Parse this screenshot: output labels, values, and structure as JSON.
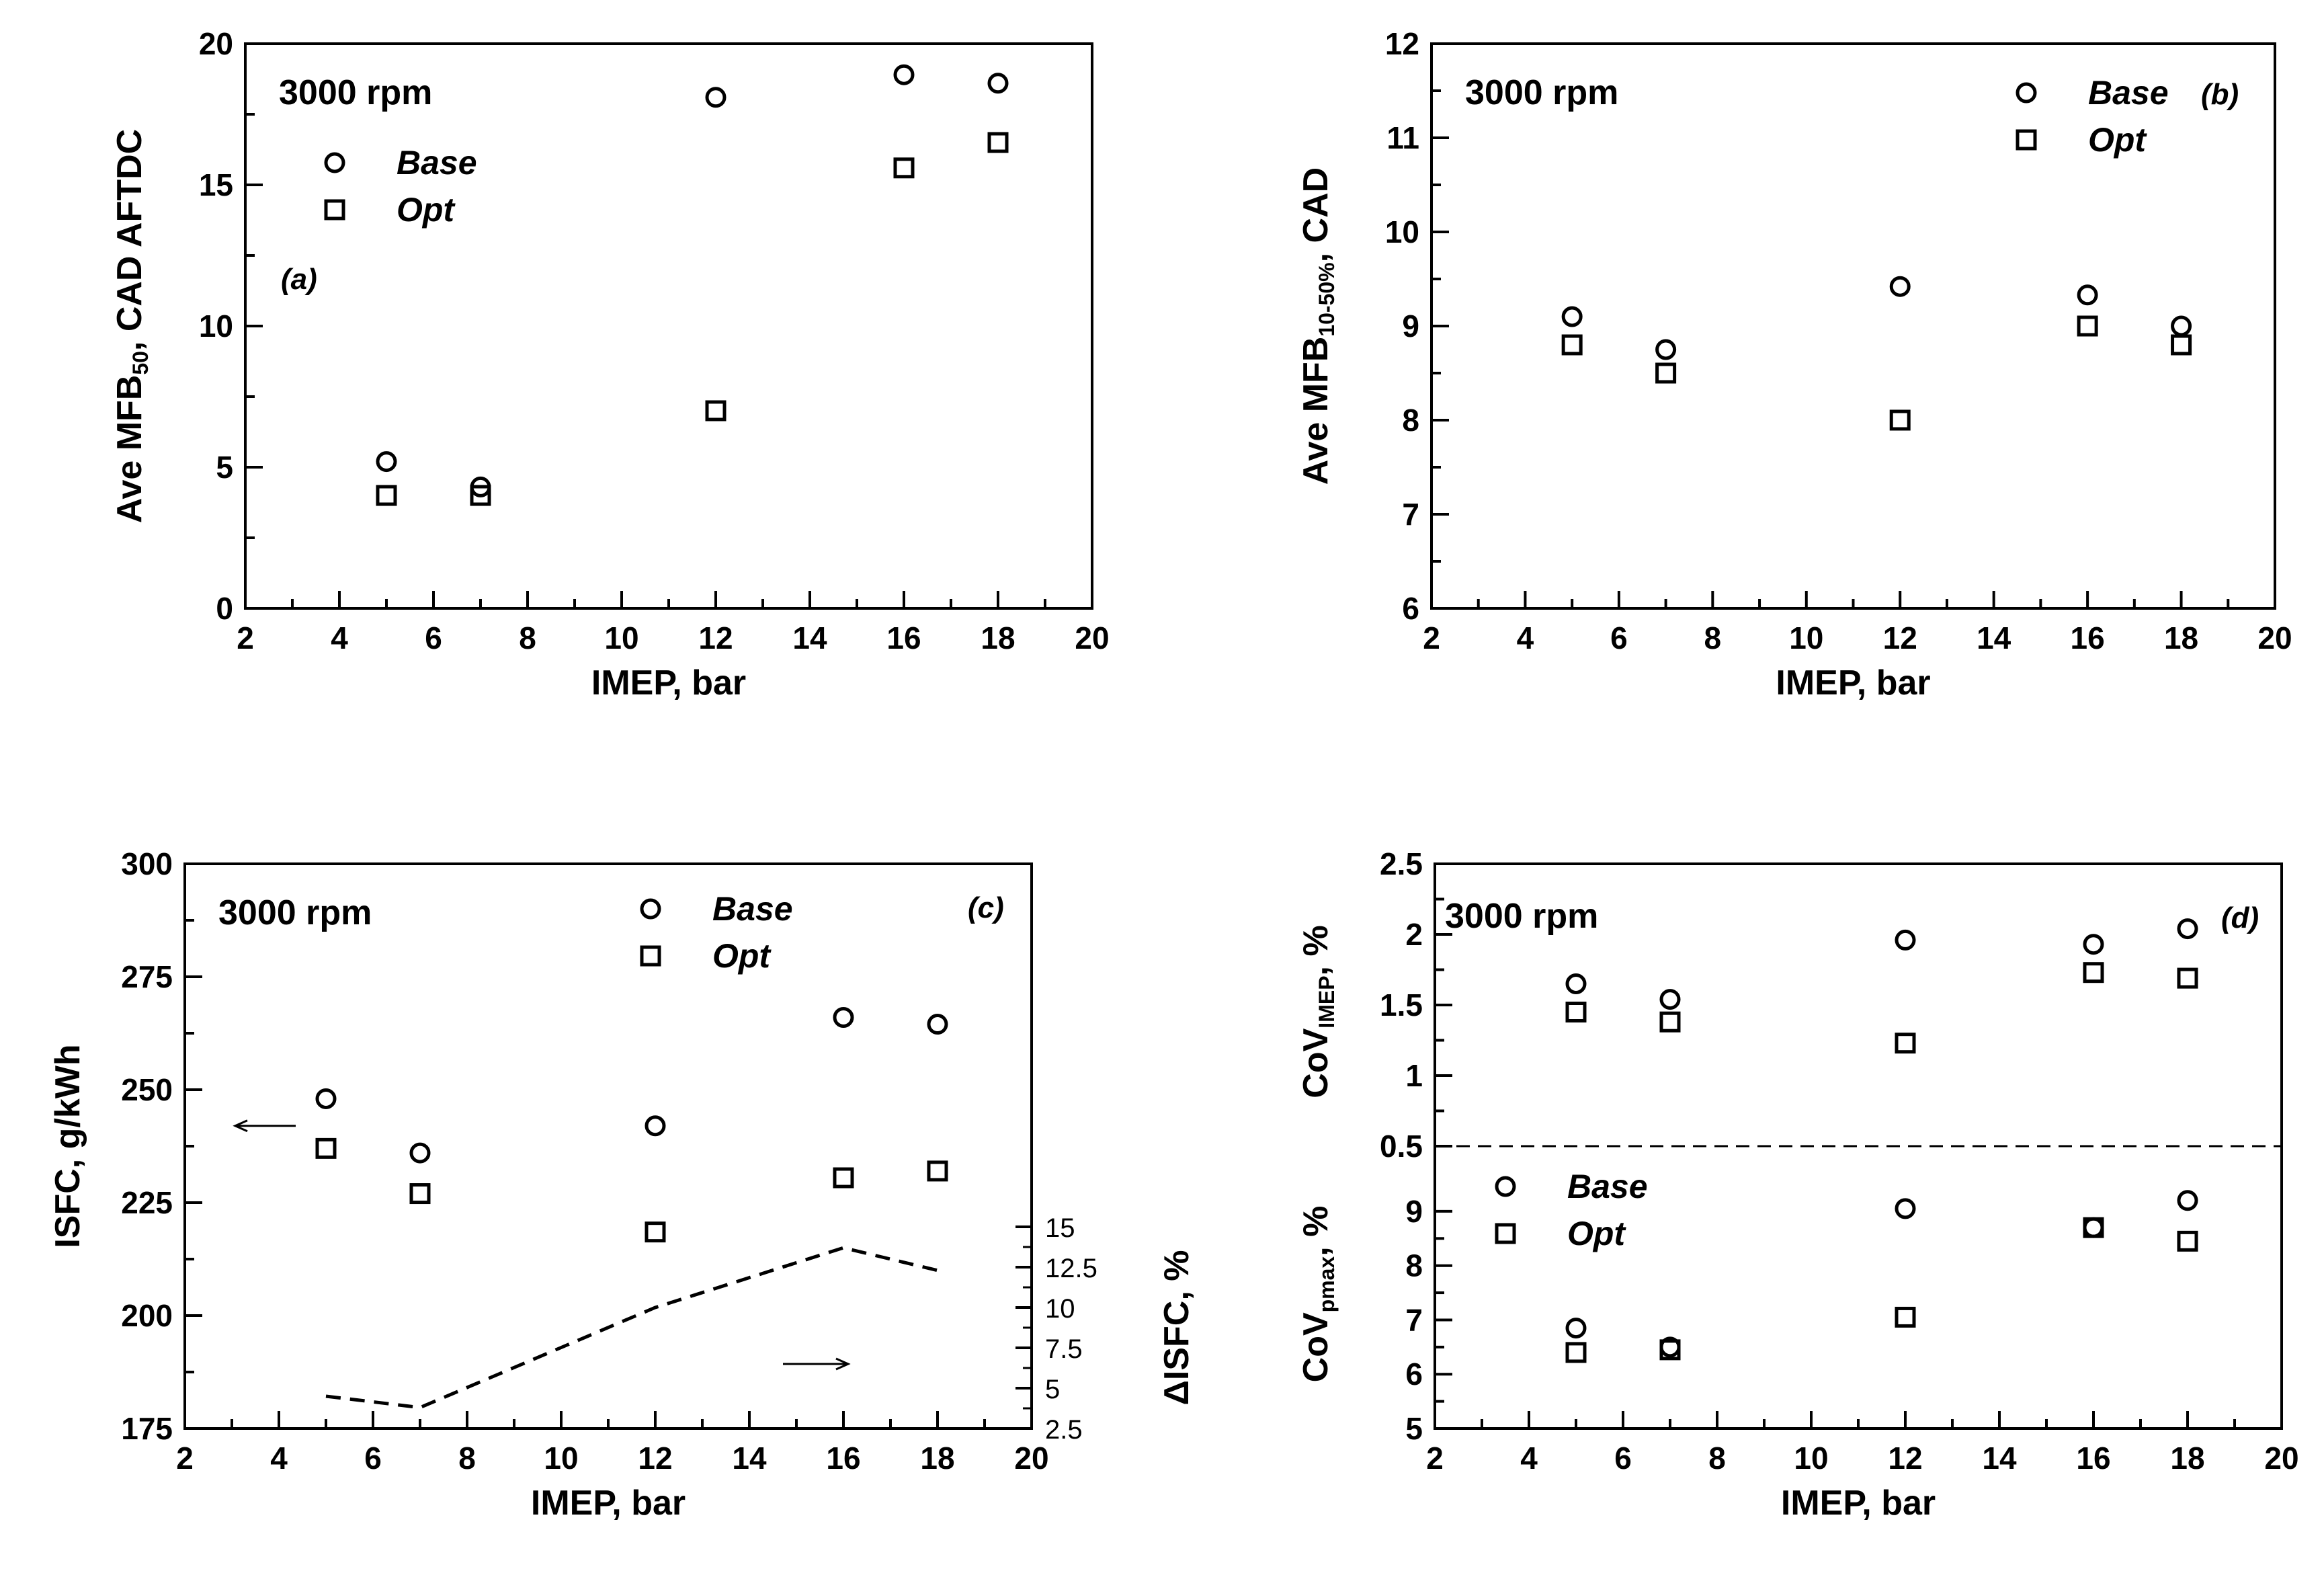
{
  "chart_data": [
    {
      "id": "a",
      "type": "scatter",
      "panel_label": "(a)",
      "annotation": "3000 rpm",
      "xlabel": "IMEP, bar",
      "ylabel_main": "Ave MFB",
      "ylabel_sub": "50",
      "ylabel_tail": ", CAD AFTDC",
      "xlim": [
        2,
        20
      ],
      "ylim": [
        0,
        20
      ],
      "xticks": [
        "2",
        "4",
        "6",
        "8",
        "10",
        "12",
        "14",
        "16",
        "18",
        "20"
      ],
      "yticks": [
        "0",
        "5",
        "10",
        "15",
        "20"
      ],
      "series": [
        {
          "name": "Base",
          "marker": "circle",
          "x": [
            5,
            7,
            12,
            16,
            18
          ],
          "y": [
            5.2,
            4.3,
            18.1,
            18.9,
            18.6
          ]
        },
        {
          "name": "Opt",
          "marker": "square",
          "x": [
            5,
            7,
            12,
            16,
            18
          ],
          "y": [
            4.0,
            4.0,
            7.0,
            15.6,
            16.5
          ]
        }
      ]
    },
    {
      "id": "b",
      "type": "scatter",
      "panel_label": "(b)",
      "annotation": "3000 rpm",
      "xlabel": "IMEP, bar",
      "ylabel_main": "Ave MFB",
      "ylabel_sub": "10-50%",
      "ylabel_tail": ", CAD",
      "xlim": [
        2,
        20
      ],
      "ylim": [
        6,
        12
      ],
      "xticks": [
        "2",
        "4",
        "6",
        "8",
        "10",
        "12",
        "14",
        "16",
        "18",
        "20"
      ],
      "yticks": [
        "6",
        "7",
        "8",
        "9",
        "10",
        "11",
        "12"
      ],
      "series": [
        {
          "name": "Base",
          "marker": "circle",
          "x": [
            5,
            7,
            12,
            16,
            18
          ],
          "y": [
            9.1,
            8.75,
            9.42,
            9.33,
            9.0
          ]
        },
        {
          "name": "Opt",
          "marker": "square",
          "x": [
            5,
            7,
            12,
            16,
            18
          ],
          "y": [
            8.8,
            8.5,
            8.0,
            9.0,
            8.8
          ]
        }
      ]
    },
    {
      "id": "c",
      "type": "scatter",
      "panel_label": "(c)",
      "annotation": "3000 rpm",
      "xlabel": "IMEP, bar",
      "ylabel_left": "ISFC, g/kWh",
      "ylabel_right": "ΔISFC, %",
      "xlim": [
        2,
        20
      ],
      "ylim": [
        175,
        300
      ],
      "ylim_right": [
        2.5,
        37.5
      ],
      "xticks": [
        "2",
        "4",
        "6",
        "8",
        "10",
        "12",
        "14",
        "16",
        "18",
        "20"
      ],
      "yticks": [
        "175",
        "200",
        "225",
        "250",
        "275",
        "300"
      ],
      "yticks_right": [
        "2.5",
        "5",
        "7.5",
        "10",
        "12.5",
        "15"
      ],
      "series": [
        {
          "name": "Base",
          "marker": "circle",
          "x": [
            5,
            7,
            12,
            16,
            18
          ],
          "y": [
            248,
            236,
            242,
            266,
            264.5
          ]
        },
        {
          "name": "Opt",
          "marker": "square",
          "x": [
            5,
            7,
            12,
            16,
            18
          ],
          "y": [
            237,
            227,
            218.5,
            230.5,
            232
          ]
        }
      ],
      "delta_series": {
        "name": "ΔISFC",
        "style": "dashed",
        "x": [
          5,
          7,
          12,
          16,
          18
        ],
        "y": [
          4.5,
          3.8,
          10.0,
          13.7,
          12.3
        ]
      }
    },
    {
      "id": "d",
      "type": "scatter",
      "panel_label": "(d)",
      "annotation": "3000 rpm",
      "xlabel": "IMEP, bar",
      "xlim": [
        2,
        20
      ],
      "xticks": [
        "2",
        "4",
        "6",
        "8",
        "10",
        "12",
        "14",
        "16",
        "18",
        "20"
      ],
      "upper": {
        "ylabel_main": "CoV",
        "ylabel_sub": "IMEP",
        "ylabel_tail": ", %",
        "ylim": [
          0.5,
          2.5
        ],
        "yticks": [
          "0.5",
          "1",
          "1.5",
          "2",
          "2.5"
        ],
        "series": [
          {
            "name": "Base",
            "marker": "circle",
            "x": [
              5,
              7,
              12,
              16,
              18
            ],
            "y": [
              1.65,
              1.54,
              1.96,
              1.93,
              2.04
            ]
          },
          {
            "name": "Opt",
            "marker": "square",
            "x": [
              5,
              7,
              12,
              16,
              18
            ],
            "y": [
              1.45,
              1.38,
              1.23,
              1.73,
              1.69
            ]
          }
        ]
      },
      "lower": {
        "ylabel_main": "CoV",
        "ylabel_sub": "pmax",
        "ylabel_tail": ", %",
        "ylim": [
          5,
          10.2
        ],
        "yticks": [
          "5",
          "6",
          "7",
          "8",
          "9"
        ],
        "series": [
          {
            "name": "Base",
            "marker": "circle",
            "x": [
              5,
              7,
              12,
              16,
              18
            ],
            "y": [
              6.85,
              6.5,
              9.05,
              8.7,
              9.2
            ]
          },
          {
            "name": "Opt",
            "marker": "square",
            "x": [
              5,
              7,
              12,
              16,
              18
            ],
            "y": [
              6.4,
              6.45,
              7.05,
              8.7,
              8.45
            ]
          }
        ]
      }
    }
  ]
}
